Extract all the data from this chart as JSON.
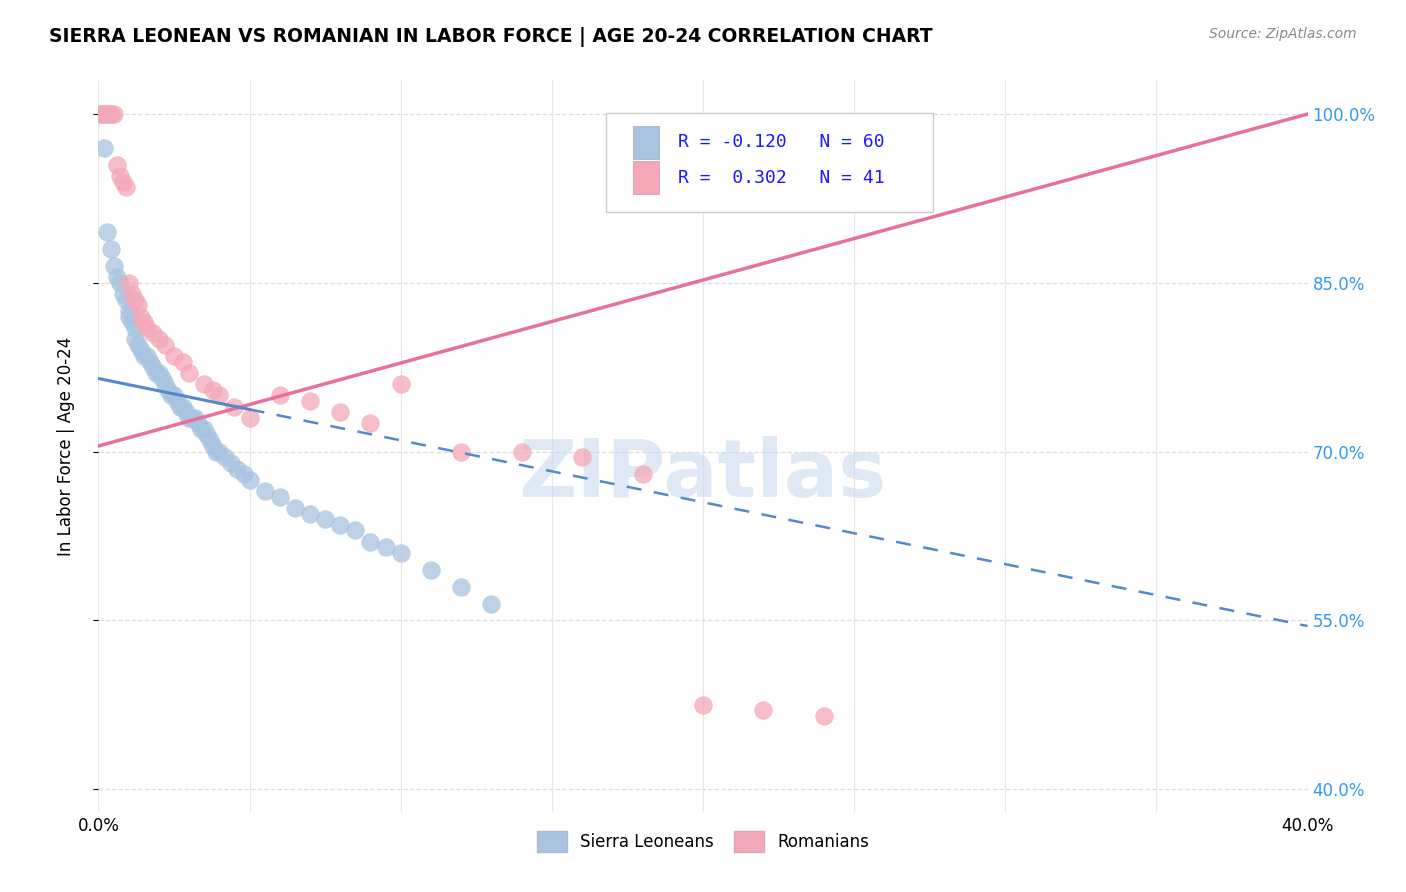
{
  "title": "SIERRA LEONEAN VS ROMANIAN IN LABOR FORCE | AGE 20-24 CORRELATION CHART",
  "source": "Source: ZipAtlas.com",
  "ylabel": "In Labor Force | Age 20-24",
  "x_min": 0.0,
  "x_max": 0.4,
  "y_min": 0.38,
  "y_max": 1.03,
  "y_ticks": [
    0.4,
    0.55,
    0.7,
    0.85,
    1.0
  ],
  "y_tick_labels": [
    "40.0%",
    "55.0%",
    "70.0%",
    "85.0%",
    "100.0%"
  ],
  "grid_color": "#dddddd",
  "background_color": "#ffffff",
  "sierra_color": "#a8c4e0",
  "romanian_color": "#f4a8b8",
  "sierra_line_color": "#5588cc",
  "romanian_line_color": "#e8709a",
  "sierra_R": -0.12,
  "sierra_N": 60,
  "romanian_R": 0.302,
  "romanian_N": 41,
  "legend_R_color": "#1a1aff",
  "watermark_color": "#c5d8ee",
  "sl_x": [
    0.001,
    0.002,
    0.003,
    0.004,
    0.005,
    0.006,
    0.007,
    0.008,
    0.009,
    0.01,
    0.01,
    0.011,
    0.012,
    0.012,
    0.013,
    0.014,
    0.015,
    0.016,
    0.017,
    0.018,
    0.019,
    0.02,
    0.021,
    0.022,
    0.023,
    0.024,
    0.025,
    0.026,
    0.027,
    0.028,
    0.029,
    0.03,
    0.031,
    0.032,
    0.033,
    0.034,
    0.035,
    0.036,
    0.037,
    0.038,
    0.039,
    0.04,
    0.042,
    0.044,
    0.046,
    0.048,
    0.05,
    0.055,
    0.06,
    0.065,
    0.07,
    0.075,
    0.08,
    0.085,
    0.09,
    0.095,
    0.1,
    0.11,
    0.12,
    0.13
  ],
  "sl_y": [
    1.0,
    0.97,
    0.895,
    0.88,
    0.865,
    0.855,
    0.85,
    0.84,
    0.835,
    0.825,
    0.82,
    0.815,
    0.81,
    0.8,
    0.795,
    0.79,
    0.785,
    0.785,
    0.78,
    0.775,
    0.77,
    0.77,
    0.765,
    0.76,
    0.755,
    0.75,
    0.75,
    0.745,
    0.74,
    0.74,
    0.735,
    0.73,
    0.73,
    0.73,
    0.725,
    0.72,
    0.72,
    0.715,
    0.71,
    0.705,
    0.7,
    0.7,
    0.695,
    0.69,
    0.685,
    0.68,
    0.675,
    0.665,
    0.66,
    0.65,
    0.645,
    0.64,
    0.635,
    0.63,
    0.62,
    0.615,
    0.61,
    0.595,
    0.58,
    0.565
  ],
  "ro_x": [
    0.001,
    0.002,
    0.003,
    0.003,
    0.004,
    0.004,
    0.005,
    0.006,
    0.007,
    0.008,
    0.009,
    0.01,
    0.011,
    0.012,
    0.013,
    0.014,
    0.015,
    0.016,
    0.018,
    0.02,
    0.022,
    0.025,
    0.028,
    0.03,
    0.035,
    0.038,
    0.04,
    0.045,
    0.05,
    0.06,
    0.07,
    0.08,
    0.09,
    0.1,
    0.12,
    0.14,
    0.16,
    0.18,
    0.2,
    0.22,
    0.24
  ],
  "ro_y": [
    1.0,
    1.0,
    1.0,
    1.0,
    1.0,
    1.0,
    1.0,
    0.955,
    0.945,
    0.94,
    0.935,
    0.85,
    0.84,
    0.835,
    0.83,
    0.82,
    0.815,
    0.81,
    0.805,
    0.8,
    0.795,
    0.785,
    0.78,
    0.77,
    0.76,
    0.755,
    0.75,
    0.74,
    0.73,
    0.75,
    0.745,
    0.735,
    0.725,
    0.76,
    0.7,
    0.7,
    0.695,
    0.68,
    0.475,
    0.47,
    0.465
  ],
  "sl_line_x0": 0.0,
  "sl_line_y0": 0.765,
  "sl_line_x1": 0.4,
  "sl_line_y1": 0.545,
  "ro_line_x0": 0.0,
  "ro_line_y0": 0.705,
  "ro_line_x1": 0.4,
  "ro_line_y1": 1.0
}
